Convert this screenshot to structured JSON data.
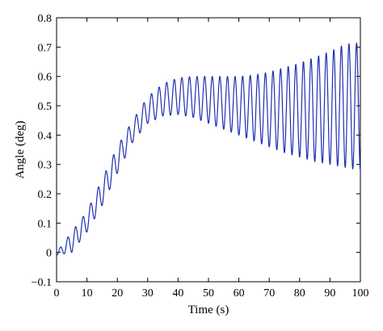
{
  "chart_data": {
    "type": "line",
    "title": "",
    "xlabel": "Time (s)",
    "ylabel": "Angle (deg)",
    "xlim": [
      0,
      100
    ],
    "ylim": [
      -0.1,
      0.8
    ],
    "x_ticks": [
      0,
      10,
      20,
      30,
      40,
      50,
      60,
      70,
      80,
      90,
      100
    ],
    "y_ticks": [
      -0.1,
      0,
      0.1,
      0.2,
      0.3,
      0.4,
      0.5,
      0.6,
      0.7,
      0.8
    ],
    "x_tick_labels": [
      "0",
      "10",
      "20",
      "30",
      "40",
      "50",
      "60",
      "70",
      "80",
      "90",
      "100"
    ],
    "y_tick_labels": [
      "−0.1",
      "0",
      "0.1",
      "0.2",
      "0.3",
      "0.4",
      "0.5",
      "0.6",
      "0.7",
      "0.8"
    ],
    "grid": false,
    "legend": "none",
    "line_color": "#1f2fb3",
    "oscillation_period_s": 2.5,
    "series": [
      {
        "x": [
          0,
          5,
          10,
          15,
          20,
          25,
          30,
          35,
          40,
          45,
          50,
          55,
          60,
          65,
          70,
          75,
          80,
          85,
          90,
          95,
          100
        ],
        "upper": [
          0.0,
          0.07,
          0.14,
          0.25,
          0.36,
          0.45,
          0.53,
          0.575,
          0.595,
          0.6,
          0.6,
          0.6,
          0.6,
          0.605,
          0.615,
          0.63,
          0.645,
          0.665,
          0.685,
          0.71,
          0.715
        ],
        "lower": [
          -0.01,
          0.0,
          0.07,
          0.16,
          0.27,
          0.375,
          0.44,
          0.465,
          0.47,
          0.46,
          0.44,
          0.42,
          0.4,
          0.38,
          0.36,
          0.34,
          0.325,
          0.31,
          0.3,
          0.29,
          0.28
        ]
      }
    ]
  }
}
